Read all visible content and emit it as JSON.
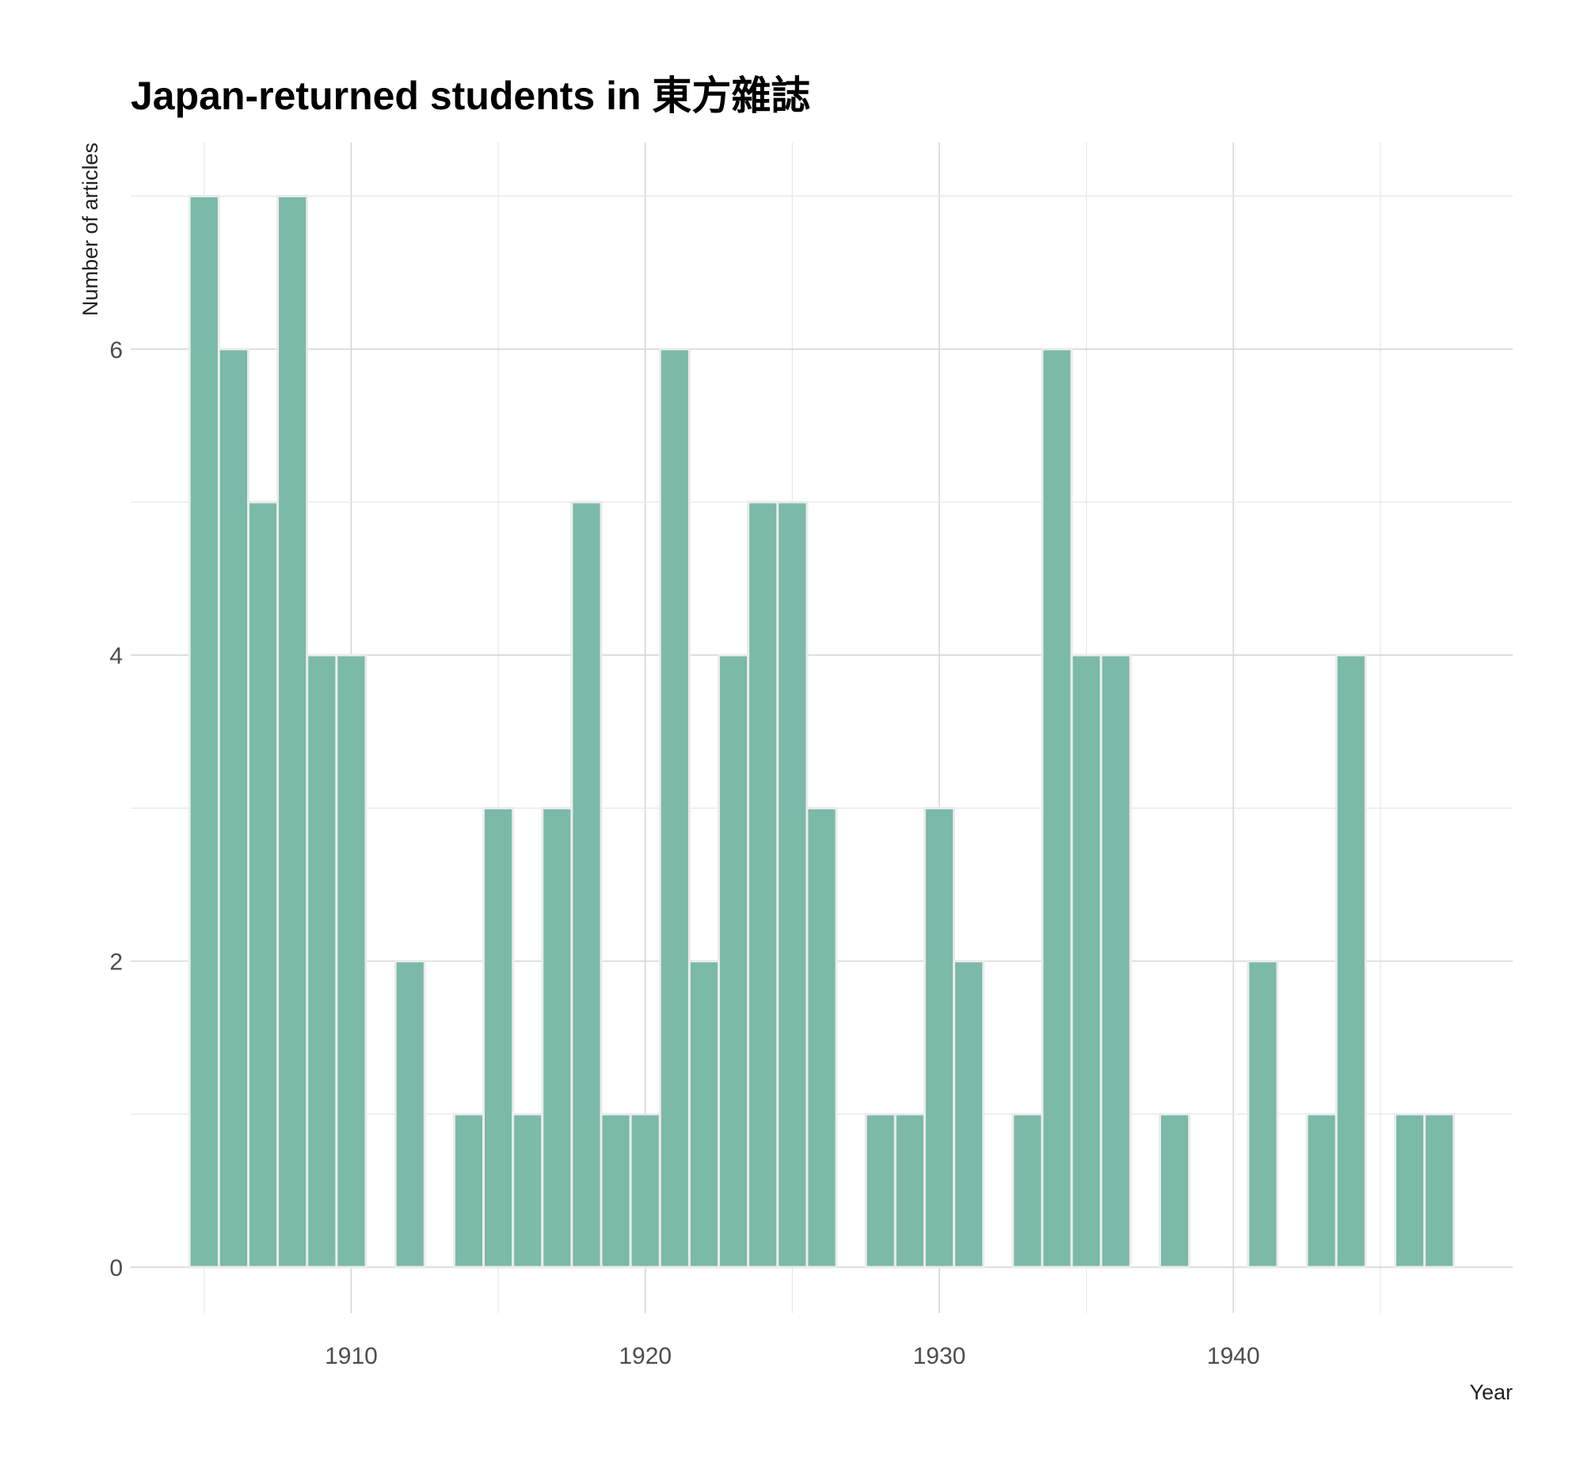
{
  "chart_data": {
    "type": "bar",
    "title": "Japan-returned students in 東方雜誌",
    "xlabel": "Year",
    "ylabel": "Number of articles",
    "bar_color": "#7bb9a8",
    "grid": true,
    "xlim": [
      1902.5,
      1949.5
    ],
    "ylim": [
      -0.3,
      7.35
    ],
    "x_ticks": [
      1910,
      1920,
      1930,
      1940
    ],
    "y_ticks": [
      0,
      2,
      4,
      6
    ],
    "x": [
      1905,
      1906,
      1907,
      1908,
      1909,
      1910,
      1912,
      1914,
      1915,
      1916,
      1917,
      1918,
      1919,
      1920,
      1921,
      1922,
      1923,
      1924,
      1925,
      1926,
      1928,
      1929,
      1930,
      1931,
      1933,
      1934,
      1935,
      1936,
      1938,
      1941,
      1943,
      1944,
      1946,
      1947
    ],
    "values": [
      7,
      6,
      5,
      7,
      4,
      4,
      2,
      1,
      3,
      1,
      3,
      5,
      1,
      1,
      6,
      2,
      4,
      5,
      5,
      3,
      1,
      1,
      3,
      2,
      1,
      6,
      4,
      4,
      1,
      2,
      1,
      4,
      1,
      1
    ]
  }
}
